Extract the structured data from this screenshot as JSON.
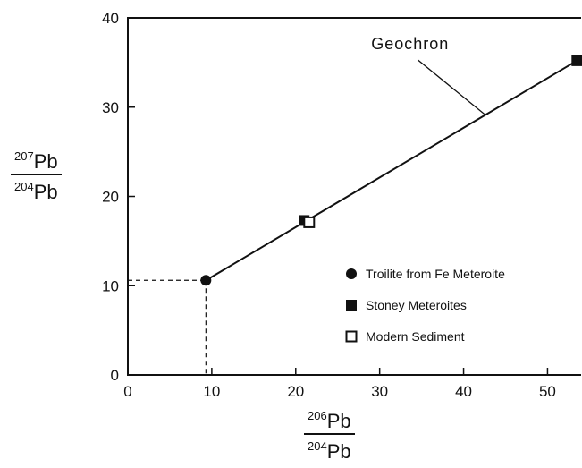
{
  "chart_data": {
    "type": "scatter",
    "title": "",
    "xlim": [
      0,
      54
    ],
    "ylim": [
      0,
      40
    ],
    "xticks": [
      "0",
      "10",
      "20",
      "30",
      "40",
      "50"
    ],
    "yticks": [
      "0",
      "10",
      "20",
      "30",
      "40"
    ],
    "xlabel": {
      "num_sup": "206",
      "num": "Pb",
      "den_sup": "204",
      "den": "Pb"
    },
    "ylabel": {
      "num_sup": "207",
      "num": "Pb",
      "den_sup": "204",
      "den": "Pb"
    },
    "series": [
      {
        "name": "Troilite from Fe Meteroite",
        "marker": "filled-circle",
        "points": [
          [
            9.3,
            10.6
          ]
        ]
      },
      {
        "name": "Stoney Meteroites",
        "marker": "filled-square",
        "points": [
          [
            21.0,
            17.3
          ],
          [
            53.5,
            35.2
          ]
        ]
      },
      {
        "name": "Modern Sediment",
        "marker": "open-square",
        "points": [
          [
            21.6,
            17.1
          ]
        ]
      }
    ],
    "lines": [
      {
        "name": "Geochron",
        "from": [
          9.3,
          10.6
        ],
        "to": [
          53.5,
          35.2
        ]
      }
    ],
    "annotation": {
      "text": "Geochron",
      "text_at": [
        29,
        36.5
      ],
      "pointer_to": [
        42.5,
        29.2
      ]
    },
    "reference_lines": {
      "x": 9.3,
      "y": 10.6,
      "style": "dashed"
    },
    "legend_position": "bottom-right",
    "grid": false
  }
}
